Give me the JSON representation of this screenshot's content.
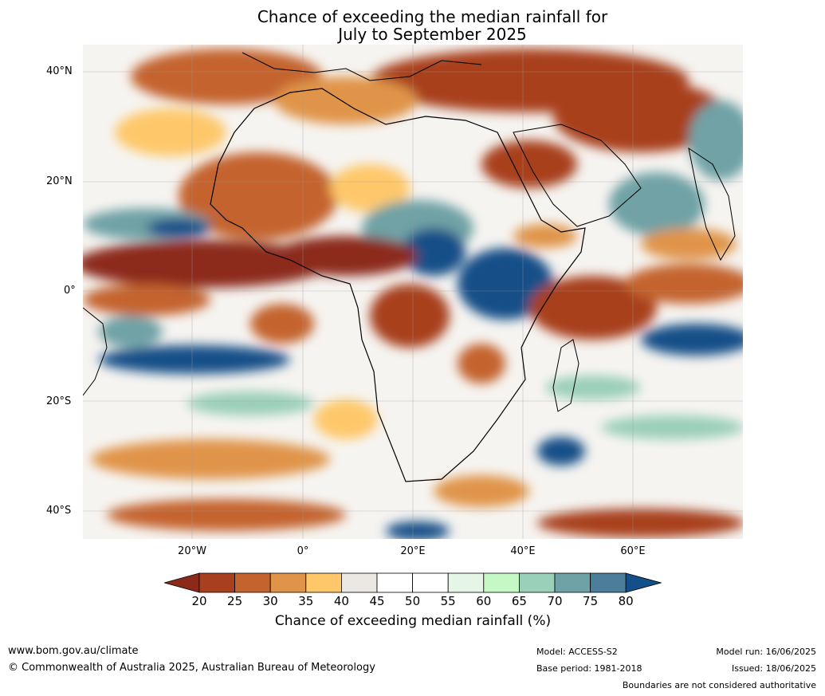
{
  "title": {
    "line1": "Chance of exceeding the median rainfall for",
    "line2": "July to September 2025"
  },
  "axes": {
    "y_labels": [
      "40°N",
      "20°N",
      "0°",
      "20°S",
      "40°S"
    ],
    "x_labels": [
      "20°W",
      "0°",
      "20°E",
      "40°E",
      "60°E"
    ]
  },
  "colorbar": {
    "ticks": [
      "20",
      "25",
      "30",
      "35",
      "40",
      "45",
      "50",
      "55",
      "60",
      "65",
      "70",
      "75",
      "80"
    ],
    "colors": [
      "#8c2a1a",
      "#a8401f",
      "#c4632e",
      "#e0944a",
      "#fec86a",
      "#ebe7e3",
      "#ffffff",
      "#ffffff",
      "#e6f6e6",
      "#c6f8c6",
      "#9acfb9",
      "#6fa2a6",
      "#4c7d9a",
      "#134f88"
    ],
    "label": "Chance of exceeding median rainfall (%)"
  },
  "footer": {
    "website": "www.bom.gov.au/climate",
    "copyright": "© Commonwealth of Australia 2025, Australian Bureau of Meteorology",
    "model": "Model: ACCESS-S2",
    "base_period": "Base period: 1981-2018",
    "model_run": "Model run: 16/06/2025",
    "issued": "Issued: 18/06/2025",
    "disclaimer": "Boundaries are not considered authoritative"
  }
}
